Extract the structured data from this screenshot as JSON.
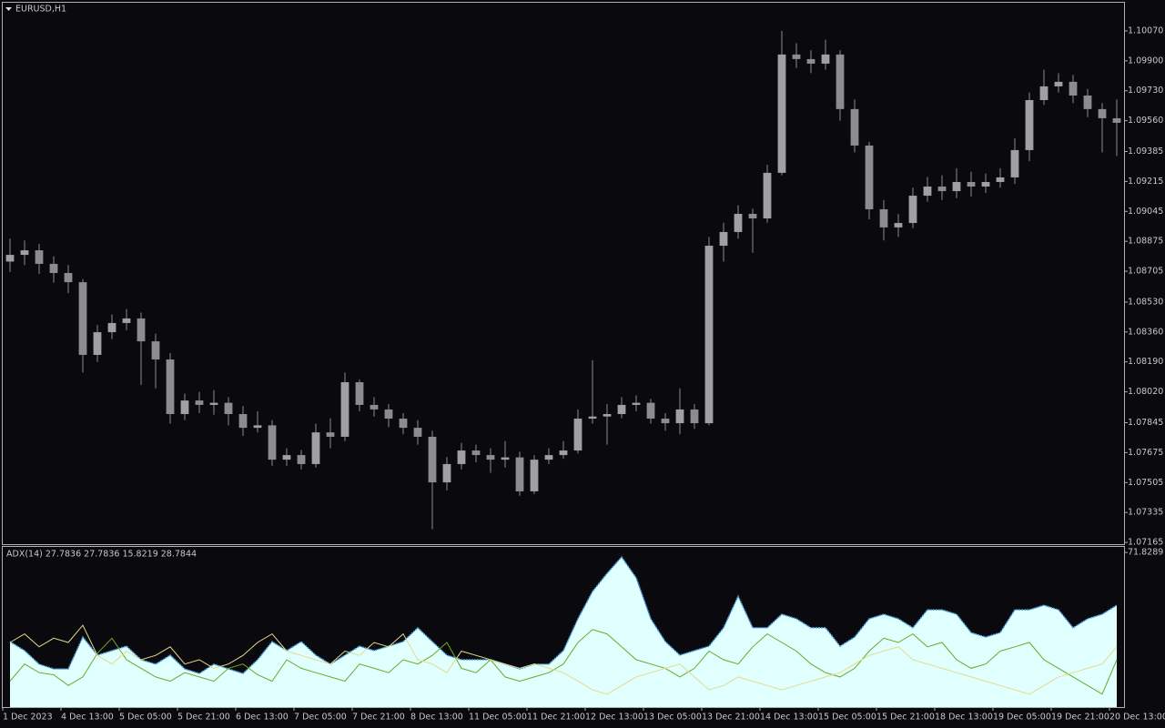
{
  "chart_data": [
    {
      "type": "candlestick",
      "title": "EURUSD,H1",
      "color": "#8c8c8c",
      "xlim": [
        0,
        77
      ],
      "ylim": [
        1.07155,
        1.1023
      ],
      "yticks": [
        {
          "value": 1.1007,
          "label": "1.10070"
        },
        {
          "value": 1.099,
          "label": "1.09900"
        },
        {
          "value": 1.0973,
          "label": "1.09730"
        },
        {
          "value": 1.0956,
          "label": "1.09560"
        },
        1.09385,
        1.09215,
        1.09045,
        1.08875,
        1.08705,
        {
          "value": 1.0853,
          "label": "1.08530"
        },
        {
          "value": 1.0836,
          "label": "1.08360"
        },
        {
          "value": 1.0819,
          "label": "1.08190"
        },
        {
          "value": 1.0802,
          "label": "1.08020"
        },
        1.07845,
        1.07675,
        1.07505,
        1.07335,
        1.07165
      ],
      "open": [
        1.0876,
        1.08798,
        1.08824,
        1.08747,
        1.08695,
        1.08643,
        1.0823,
        1.08359,
        1.08411,
        1.08437,
        1.08307,
        1.08204,
        1.07894,
        1.07971,
        1.07946,
        1.07958,
        1.07894,
        1.07816,
        1.0783,
        1.07635,
        1.07661,
        1.0761,
        1.0779,
        1.07765,
        1.08075,
        1.07946,
        1.0792,
        1.07868,
        1.07816,
        1.07765,
        1.07506,
        1.0761,
        1.07687,
        1.07661,
        1.07635,
        1.07648,
        1.07455,
        1.07635,
        1.07661,
        1.07687,
        1.07868,
        1.0788,
        1.07894,
        1.07946,
        1.07958,
        1.07868,
        1.07842,
        1.0792,
        1.07842,
        1.0885,
        1.08928,
        1.09031,
        1.09005,
        1.09264,
        1.09936,
        1.0991,
        1.09884,
        1.09936,
        1.09626,
        1.09419,
        1.09057,
        1.08954,
        1.08979,
        1.09134,
        1.09186,
        1.0916,
        1.09212,
        1.09186,
        1.09212,
        1.09238,
        1.09393,
        1.09677,
        1.09755,
        1.09781,
        1.09703,
        1.09626,
        1.09574
      ],
      "high": [
        1.0889,
        1.0888,
        1.0886,
        1.0879,
        1.0874,
        1.0866,
        1.084,
        1.0846,
        1.0849,
        1.0847,
        1.0835,
        1.0824,
        1.0801,
        1.0802,
        1.0803,
        1.0799,
        1.0794,
        1.0791,
        1.0786,
        1.077,
        1.0769,
        1.0784,
        1.0787,
        1.0813,
        1.0809,
        1.0799,
        1.0795,
        1.079,
        1.0786,
        1.078,
        1.0765,
        1.0773,
        1.0772,
        1.077,
        1.0774,
        1.0768,
        1.0766,
        1.077,
        1.0774,
        1.0792,
        1.082,
        1.0795,
        1.0799,
        1.08,
        1.0798,
        1.079,
        1.0804,
        1.0795,
        1.089,
        1.0898,
        1.0908,
        1.0906,
        1.0931,
        1.1007,
        1.1,
        1.0996,
        1.1002,
        1.0996,
        1.0968,
        1.0944,
        1.0911,
        1.0903,
        1.0918,
        1.0924,
        1.0925,
        1.0929,
        1.0927,
        1.0926,
        1.0929,
        1.0946,
        1.0972,
        1.0985,
        1.0983,
        1.0982,
        1.0974,
        1.0966,
        1.0968
      ],
      "low": [
        1.087,
        1.0874,
        1.0869,
        1.0864,
        1.0858,
        1.0813,
        1.0819,
        1.0832,
        1.0837,
        1.0806,
        1.0804,
        1.0784,
        1.0786,
        1.079,
        1.0789,
        1.0783,
        1.0777,
        1.0779,
        1.076,
        1.076,
        1.0758,
        1.0759,
        1.077,
        1.0774,
        1.0791,
        1.0788,
        1.0782,
        1.0778,
        1.0772,
        1.0724,
        1.0746,
        1.0758,
        1.0762,
        1.0756,
        1.0759,
        1.0743,
        1.0744,
        1.0761,
        1.0764,
        1.0767,
        1.0784,
        1.0772,
        1.0787,
        1.0791,
        1.0784,
        1.078,
        1.0778,
        1.0781,
        1.0783,
        1.0876,
        1.0889,
        1.0881,
        1.0898,
        1.0925,
        1.0986,
        1.0983,
        1.0985,
        1.0956,
        1.0938,
        1.09,
        1.0888,
        1.089,
        1.0895,
        1.091,
        1.0911,
        1.0912,
        1.0913,
        1.0915,
        1.0918,
        1.092,
        1.0933,
        1.0965,
        1.0972,
        1.0966,
        1.0958,
        1.0938,
        1.0936
      ],
      "close": [
        1.08798,
        1.08824,
        1.08747,
        1.08695,
        1.08643,
        1.0823,
        1.08359,
        1.08411,
        1.08437,
        1.08307,
        1.08204,
        1.07894,
        1.07971,
        1.07946,
        1.07958,
        1.07894,
        1.07816,
        1.0783,
        1.07635,
        1.07661,
        1.0761,
        1.0779,
        1.07765,
        1.08075,
        1.07946,
        1.0792,
        1.07868,
        1.07816,
        1.07765,
        1.07506,
        1.0761,
        1.07687,
        1.07661,
        1.07635,
        1.07648,
        1.07455,
        1.07635,
        1.07661,
        1.07687,
        1.07868,
        1.0788,
        1.07894,
        1.07946,
        1.07958,
        1.07868,
        1.07842,
        1.0792,
        1.07842,
        1.0885,
        1.08928,
        1.09031,
        1.09005,
        1.09264,
        1.09936,
        1.0991,
        1.09884,
        1.09936,
        1.09626,
        1.09419,
        1.09057,
        1.08954,
        1.08979,
        1.09134,
        1.09186,
        1.0916,
        1.09212,
        1.09186,
        1.09212,
        1.09238,
        1.09393,
        1.09677,
        1.09755,
        1.09781,
        1.09703,
        1.09626,
        1.09574,
        1.09548
      ]
    },
    {
      "type": "line",
      "title": "ADX(14) 27.7836 27.7836 15.8219 28.7844",
      "xlim": [
        0,
        77
      ],
      "ylim": [
        0,
        74.4
      ],
      "yticks": [
        71.8289
      ],
      "xticks": [
        {
          "value": 0,
          "label": "1 Dec 2023"
        },
        {
          "value": 4,
          "label": "4 Dec 13:00"
        },
        {
          "value": 8,
          "label": "5 Dec 05:00"
        },
        {
          "value": 12,
          "label": "5 Dec 21:00"
        },
        {
          "value": 16,
          "label": "6 Dec 13:00"
        },
        {
          "value": 20,
          "label": "7 Dec 05:00"
        },
        {
          "value": 24,
          "label": "7 Dec 21:00"
        },
        {
          "value": 28,
          "label": "8 Dec 13:00"
        },
        {
          "value": 32,
          "label": "11 Dec 05:00"
        },
        {
          "value": 36,
          "label": "11 Dec 21:00"
        },
        {
          "value": 40,
          "label": "12 Dec 13:00"
        },
        {
          "value": 44,
          "label": "13 Dec 05:00"
        },
        {
          "value": 48,
          "label": "13 Dec 21:00"
        },
        {
          "value": 52,
          "label": "14 Dec 13:00"
        },
        {
          "value": 56,
          "label": "15 Dec 05:00"
        },
        {
          "value": 60,
          "label": "15 Dec 21:00"
        },
        {
          "value": 64,
          "label": "18 Dec 13:00"
        },
        {
          "value": 68,
          "label": "19 Dec 05:00"
        },
        {
          "value": 72,
          "label": "19 Dec 21:00"
        },
        {
          "value": 76,
          "label": "20 Dec 13:00"
        }
      ],
      "series": [
        {
          "type": "area",
          "color": "#e0ffff",
          "line_color": "#4aa3df",
          "values": [
            30.4,
            26.2,
            19.9,
            17.7,
            17.7,
            32.5,
            24.1,
            26.2,
            28.3,
            22.0,
            19.9,
            24.1,
            17.7,
            15.6,
            19.9,
            17.7,
            15.6,
            22.0,
            30.4,
            26.2,
            30.4,
            24.1,
            19.9,
            24.1,
            28.3,
            26.2,
            28.3,
            30.4,
            36.8,
            30.4,
            24.1,
            22.0,
            22.0,
            22.0,
            19.9,
            17.7,
            19.9,
            19.9,
            26.2,
            41.0,
            53.7,
            62.1,
            69.7,
            60.0,
            41.0,
            30.4,
            24.1,
            26.2,
            28.3,
            36.8,
            51.5,
            36.8,
            36.8,
            43.1,
            41.0,
            36.8,
            36.8,
            28.3,
            32.5,
            41.0,
            43.1,
            41.0,
            36.8,
            45.2,
            45.2,
            43.1,
            34.6,
            32.5,
            34.6,
            45.2,
            45.2,
            47.3,
            45.2,
            36.8,
            41.0,
            43.1,
            47.3
          ]
        },
        {
          "type": "line",
          "color": "#6fa81e",
          "values": [
            12,
            20,
            16,
            15,
            10,
            14,
            25,
            32,
            22,
            18,
            14,
            12,
            16,
            14,
            12,
            18,
            20,
            15,
            12,
            22,
            18,
            16,
            14,
            12,
            20,
            18,
            16,
            22,
            20,
            24,
            30,
            18,
            16,
            22,
            14,
            12,
            14,
            16,
            20,
            30,
            36,
            34,
            28,
            22,
            20,
            18,
            14,
            18,
            26,
            22,
            20,
            28,
            34,
            30,
            26,
            20,
            16,
            14,
            18,
            26,
            32,
            30,
            34,
            28,
            30,
            22,
            18,
            20,
            26,
            28,
            30,
            22,
            18,
            14,
            10,
            6,
            22
          ]
        },
        {
          "type": "line",
          "color": "#e6d98a",
          "values": [
            30,
            34,
            28,
            32,
            30,
            38,
            24,
            20,
            26,
            22,
            24,
            28,
            20,
            22,
            18,
            20,
            24,
            30,
            34,
            26,
            24,
            22,
            20,
            26,
            24,
            30,
            28,
            34,
            22,
            20,
            16,
            26,
            24,
            22,
            20,
            18,
            20,
            18,
            16,
            12,
            8,
            6,
            10,
            14,
            16,
            18,
            20,
            14,
            8,
            10,
            14,
            12,
            10,
            8,
            10,
            12,
            14,
            16,
            20,
            24,
            26,
            28,
            22,
            20,
            18,
            16,
            14,
            12,
            10,
            8,
            6,
            10,
            14,
            16,
            18,
            20,
            28
          ]
        }
      ]
    }
  ]
}
